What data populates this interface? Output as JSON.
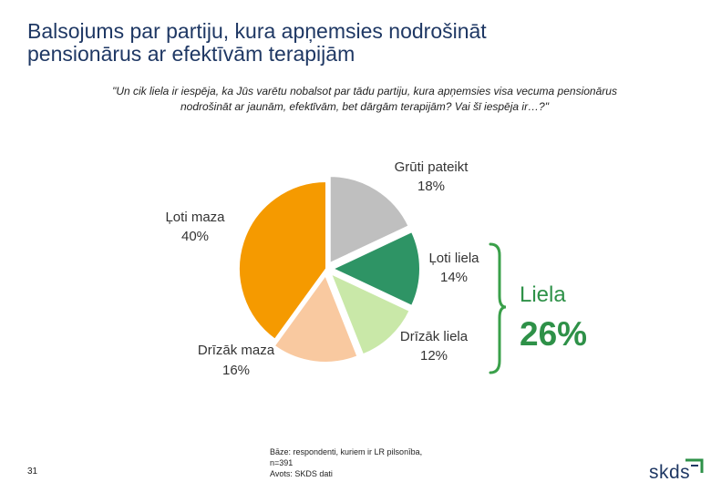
{
  "header": {
    "title": "Balsojums par partiju, kura apņemsies nodrošināt\npensionārus ar efektīvām terapijām"
  },
  "question": "\"Un cik liela ir iespēja, ka Jūs varētu nobalsot par tādu partiju, kura apņemsies visa vecuma pensionārus\nnodrošināt ar jaunām, efektīvām, bet dārgām terapijām? Vai šī iespēja ir…?\"",
  "chart_data": {
    "type": "pie",
    "title": "",
    "slices": [
      {
        "label": "Grūti pateikt",
        "value": 18,
        "display": "18%",
        "color": "#bfbfbf"
      },
      {
        "label": "Ļoti liela",
        "value": 14,
        "display": "14%",
        "color": "#2e9465"
      },
      {
        "label": "Drīzāk liela",
        "value": 12,
        "display": "12%",
        "color": "#c9e8a8"
      },
      {
        "label": "Drīzāk maza",
        "value": 16,
        "display": "16%",
        "color": "#f9c9a0"
      },
      {
        "label": "Ļoti maza",
        "value": 40,
        "display": "40%",
        "color": "#f59a00"
      }
    ],
    "summary": {
      "label": "Liela",
      "value": "26%",
      "color": "#2e9148"
    }
  },
  "footer": {
    "page_number": "31",
    "base_line1": "Bāze: respondenti, kuriem ir LR pilsonība,",
    "base_line2": "n=391",
    "source": "Avots: SKDS dati",
    "logo_text": "skds"
  },
  "colors": {
    "title": "#1f3864",
    "bracket": "#3aa04a",
    "logo_accent": "#2e9148"
  }
}
